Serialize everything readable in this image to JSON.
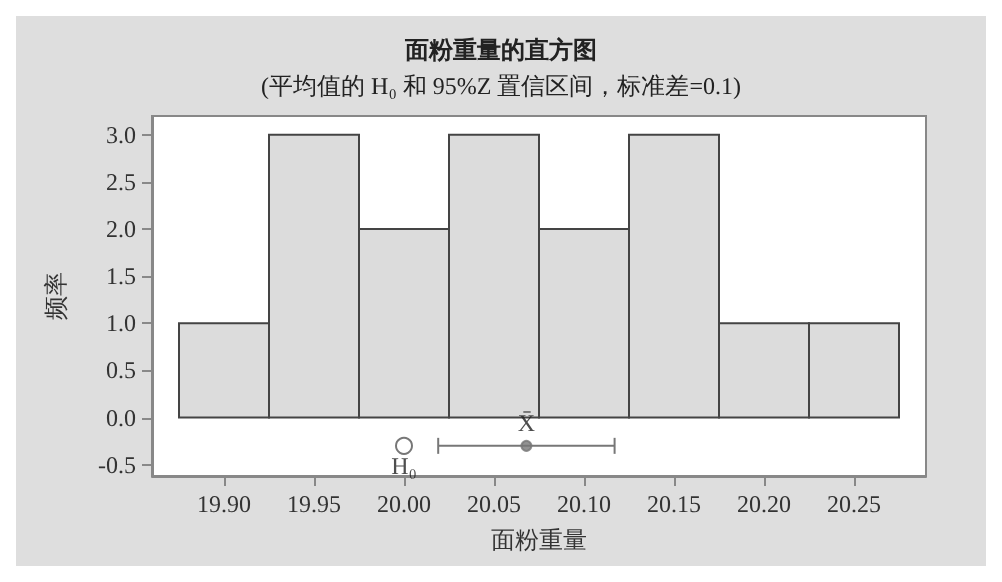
{
  "chart_data": {
    "type": "histogram",
    "title": "面粉重量的直方图",
    "subtitle": "(平均值的 H₀ 和 95%Z 置信区间，标准差=0.1)",
    "xlabel": "面粉重量",
    "ylabel": "频率",
    "bins": [
      19.875,
      19.925,
      19.975,
      20.025,
      20.075,
      20.125,
      20.175,
      20.225,
      20.275
    ],
    "values": [
      1,
      3,
      2,
      3,
      2,
      3,
      1,
      1
    ],
    "color": "#dcdcdc",
    "series": [
      {
        "type": "scatter",
        "name": "H₀",
        "x": [
          20.0
        ],
        "values": [
          -0.3
        ],
        "marker": "circle",
        "color": "#555555"
      },
      {
        "type": "scatter",
        "name": "X̄",
        "x": [
          20.068
        ],
        "values": [
          -0.3
        ],
        "xerrors": [
          [
            20.019,
            20.117
          ]
        ],
        "marker": "circle",
        "color": "#777777"
      }
    ],
    "xlim": [
      19.86,
      20.29
    ],
    "ylim": [
      -0.62,
      3.2
    ],
    "xticks": [
      {
        "value": 19.9,
        "label": "19.90"
      },
      {
        "value": 19.95,
        "label": "19.95"
      },
      {
        "value": 20.0,
        "label": "20.00"
      },
      {
        "value": 20.05,
        "label": "20.05"
      },
      {
        "value": 20.1,
        "label": "20.10"
      },
      {
        "value": 20.15,
        "label": "20.15"
      },
      {
        "value": 20.2,
        "label": "20.20"
      },
      {
        "value": 20.25,
        "label": "20.25"
      }
    ],
    "yticks": [
      {
        "value": -0.5,
        "label": "-0.5"
      },
      {
        "value": 0,
        "label": "0.0"
      },
      {
        "value": 0.5,
        "label": "0.5"
      },
      {
        "value": 1,
        "label": "1.0"
      },
      {
        "value": 1.5,
        "label": "1.5"
      },
      {
        "value": 2,
        "label": "2.0"
      },
      {
        "value": 2.5,
        "label": "2.5"
      },
      {
        "value": 3,
        "label": "3.0"
      }
    ],
    "grid": false,
    "legend": false
  }
}
